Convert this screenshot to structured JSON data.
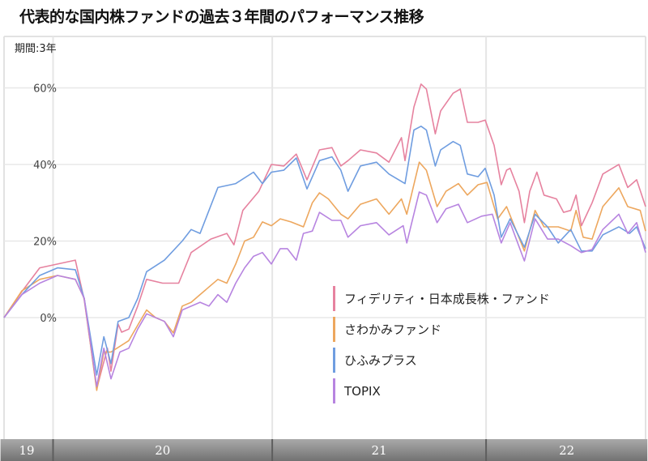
{
  "title": "代表的な国内株ファンドの過去３年間のパフォーマンス推移",
  "chart_data": {
    "type": "line",
    "title": "代表的な国内株ファンドの過去３年間のパフォーマンス推移",
    "period_label": "期間:3年",
    "xlabel": "",
    "ylabel": "",
    "x_unit": "months since start",
    "xlim": [
      0,
      36
    ],
    "ylim": [
      -33,
      73
    ],
    "yticks": [
      {
        "value": 0,
        "label": "0%"
      },
      {
        "value": 20,
        "label": "20%"
      },
      {
        "value": 40,
        "label": "40%"
      },
      {
        "value": 60,
        "label": "60%"
      }
    ],
    "years": [
      {
        "label": "19",
        "start": -0.2,
        "end": 2.75
      },
      {
        "label": "20",
        "start": 2.75,
        "end": 15.05
      },
      {
        "label": "21",
        "start": 15.05,
        "end": 27.05
      },
      {
        "label": "22",
        "start": 27.05,
        "end": 36.1
      }
    ],
    "legend_position": "center-right",
    "series": [
      {
        "name": "フィデリティ・日本成長株・ファンド",
        "color": "#e6829f",
        "points": [
          [
            0,
            0
          ],
          [
            1,
            6.8
          ],
          [
            2,
            13
          ],
          [
            3,
            14
          ],
          [
            4,
            15
          ],
          [
            4.5,
            4.6
          ],
          [
            5.2,
            -18.6
          ],
          [
            5.8,
            -8
          ],
          [
            6,
            -14
          ],
          [
            6.4,
            -1.7
          ],
          [
            6.6,
            -3.8
          ],
          [
            7,
            -3
          ],
          [
            7.5,
            3
          ],
          [
            8,
            10
          ],
          [
            8.9,
            9
          ],
          [
            9.8,
            9
          ],
          [
            10.5,
            17
          ],
          [
            11.6,
            20.5
          ],
          [
            12.5,
            22
          ],
          [
            12.9,
            19
          ],
          [
            13.4,
            28
          ],
          [
            14.3,
            33
          ],
          [
            15,
            40
          ],
          [
            15.7,
            39.6
          ],
          [
            16.4,
            42.7
          ],
          [
            17,
            36
          ],
          [
            17.7,
            43.8
          ],
          [
            18.4,
            44.4
          ],
          [
            18.9,
            39.6
          ],
          [
            19.3,
            41
          ],
          [
            20,
            43.8
          ],
          [
            20.9,
            43
          ],
          [
            21.6,
            40.6
          ],
          [
            22.3,
            47
          ],
          [
            22.5,
            41
          ],
          [
            23,
            55
          ],
          [
            23.4,
            61
          ],
          [
            23.7,
            59.7
          ],
          [
            24.2,
            48
          ],
          [
            24.5,
            54
          ],
          [
            25.2,
            58.6
          ],
          [
            25.6,
            59.7
          ],
          [
            26,
            51
          ],
          [
            26.6,
            51
          ],
          [
            27,
            51.6
          ],
          [
            27.5,
            45
          ],
          [
            27.9,
            34.7
          ],
          [
            28.2,
            38.5
          ],
          [
            28.4,
            39
          ],
          [
            28.9,
            33
          ],
          [
            29.2,
            24.8
          ],
          [
            29.5,
            33
          ],
          [
            29.9,
            38
          ],
          [
            30.3,
            32
          ],
          [
            31,
            31
          ],
          [
            31.4,
            27.5
          ],
          [
            31.8,
            28
          ],
          [
            32.1,
            32
          ],
          [
            32.4,
            24
          ],
          [
            33,
            30
          ],
          [
            33.6,
            37.5
          ],
          [
            34.5,
            40
          ],
          [
            35,
            34
          ],
          [
            35.5,
            36
          ],
          [
            36,
            29
          ]
        ]
      },
      {
        "name": "さわかみファンド",
        "color": "#eda75e",
        "points": [
          [
            0,
            0
          ],
          [
            1,
            7
          ],
          [
            2,
            10
          ],
          [
            3,
            11
          ],
          [
            4,
            10
          ],
          [
            4.5,
            5
          ],
          [
            5.2,
            -19
          ],
          [
            5.6,
            -9
          ],
          [
            6,
            -9
          ],
          [
            7,
            -6
          ],
          [
            7.5,
            -2
          ],
          [
            8,
            2
          ],
          [
            8.5,
            0
          ],
          [
            9,
            -1
          ],
          [
            9.5,
            -4
          ],
          [
            10,
            3
          ],
          [
            10.5,
            4
          ],
          [
            11,
            6
          ],
          [
            11.5,
            8
          ],
          [
            12,
            10
          ],
          [
            12.5,
            9
          ],
          [
            13,
            14
          ],
          [
            13.5,
            20
          ],
          [
            14,
            21
          ],
          [
            14.5,
            25
          ],
          [
            15,
            24
          ],
          [
            15.5,
            25.8
          ],
          [
            16.1,
            25
          ],
          [
            16.8,
            23.7
          ],
          [
            17.3,
            30
          ],
          [
            17.7,
            32.6
          ],
          [
            18.2,
            31
          ],
          [
            18.9,
            27
          ],
          [
            19.3,
            25.8
          ],
          [
            20,
            29.6
          ],
          [
            20.9,
            31
          ],
          [
            21.6,
            27
          ],
          [
            22.3,
            31
          ],
          [
            22.6,
            27
          ],
          [
            23.3,
            40.6
          ],
          [
            23.7,
            38.5
          ],
          [
            24.3,
            29
          ],
          [
            24.8,
            33
          ],
          [
            25.5,
            35
          ],
          [
            26,
            32
          ],
          [
            26.6,
            34.7
          ],
          [
            27.1,
            35.3
          ],
          [
            27.7,
            25.8
          ],
          [
            28.2,
            29
          ],
          [
            29.2,
            17.4
          ],
          [
            29.8,
            28
          ],
          [
            30.3,
            23.7
          ],
          [
            31.1,
            23.7
          ],
          [
            31.8,
            22.6
          ],
          [
            32.1,
            28
          ],
          [
            32.5,
            21
          ],
          [
            33,
            20.5
          ],
          [
            33.6,
            29
          ],
          [
            34.5,
            33.9
          ],
          [
            35,
            29
          ],
          [
            35.7,
            28
          ],
          [
            36,
            22.6
          ]
        ]
      },
      {
        "name": "ひふみプラス",
        "color": "#6f9de0",
        "points": [
          [
            0,
            0
          ],
          [
            1,
            6
          ],
          [
            2,
            11
          ],
          [
            3,
            13
          ],
          [
            4,
            12.5
          ],
          [
            4.5,
            5
          ],
          [
            5.2,
            -15
          ],
          [
            5.6,
            -5
          ],
          [
            6,
            -12
          ],
          [
            6.4,
            -1
          ],
          [
            7,
            0
          ],
          [
            7.5,
            5
          ],
          [
            8,
            12
          ],
          [
            9,
            15
          ],
          [
            10,
            20
          ],
          [
            10.5,
            23
          ],
          [
            11,
            22
          ],
          [
            11.5,
            28
          ],
          [
            12,
            34
          ],
          [
            13,
            35
          ],
          [
            14,
            38
          ],
          [
            14.5,
            35
          ],
          [
            15,
            38
          ],
          [
            15.7,
            38.5
          ],
          [
            16.4,
            41.7
          ],
          [
            17,
            33.6
          ],
          [
            17.7,
            41
          ],
          [
            18.4,
            42
          ],
          [
            18.9,
            38.5
          ],
          [
            19.3,
            33
          ],
          [
            20,
            39.6
          ],
          [
            20.9,
            40.6
          ],
          [
            21.6,
            37.5
          ],
          [
            22.5,
            35
          ],
          [
            23,
            49
          ],
          [
            23.4,
            50
          ],
          [
            23.7,
            49
          ],
          [
            24.2,
            39.6
          ],
          [
            24.5,
            43.8
          ],
          [
            25.2,
            46
          ],
          [
            25.6,
            45
          ],
          [
            26,
            37.5
          ],
          [
            26.6,
            36.8
          ],
          [
            27,
            39
          ],
          [
            27.5,
            32
          ],
          [
            27.9,
            21
          ],
          [
            28.4,
            25.8
          ],
          [
            29.2,
            18.4
          ],
          [
            29.8,
            27
          ],
          [
            30.5,
            23.7
          ],
          [
            31.1,
            19.5
          ],
          [
            31.8,
            23
          ],
          [
            32.4,
            17.4
          ],
          [
            33,
            17.4
          ],
          [
            33.6,
            21.6
          ],
          [
            34.5,
            23.7
          ],
          [
            35.1,
            22
          ],
          [
            35.5,
            23.7
          ],
          [
            36,
            18
          ]
        ]
      },
      {
        "name": "TOPIX",
        "color": "#b784e0",
        "points": [
          [
            0,
            0
          ],
          [
            1,
            6
          ],
          [
            2,
            9
          ],
          [
            3,
            11
          ],
          [
            4,
            10
          ],
          [
            4.5,
            5
          ],
          [
            5.2,
            -18
          ],
          [
            5.6,
            -8
          ],
          [
            6,
            -16
          ],
          [
            6.5,
            -9
          ],
          [
            7,
            -8
          ],
          [
            7.5,
            -3
          ],
          [
            8,
            1
          ],
          [
            9,
            -1
          ],
          [
            9.5,
            -5
          ],
          [
            10,
            2
          ],
          [
            11,
            4
          ],
          [
            11.5,
            3
          ],
          [
            12,
            6
          ],
          [
            12.5,
            4
          ],
          [
            13,
            9
          ],
          [
            13.5,
            13
          ],
          [
            14,
            16
          ],
          [
            14.5,
            17
          ],
          [
            15,
            14
          ],
          [
            15.5,
            18
          ],
          [
            15.9,
            18
          ],
          [
            16.4,
            15
          ],
          [
            16.8,
            22
          ],
          [
            17.3,
            22.6
          ],
          [
            17.7,
            27.5
          ],
          [
            18.4,
            25.4
          ],
          [
            18.9,
            25.4
          ],
          [
            19.3,
            21
          ],
          [
            20,
            24
          ],
          [
            20.9,
            24.8
          ],
          [
            21.6,
            21.6
          ],
          [
            22.4,
            24
          ],
          [
            22.6,
            19.5
          ],
          [
            23.3,
            32.8
          ],
          [
            23.7,
            32
          ],
          [
            24.3,
            24.8
          ],
          [
            24.8,
            28.4
          ],
          [
            25.5,
            29.6
          ],
          [
            26,
            24.8
          ],
          [
            26.8,
            26.5
          ],
          [
            27.4,
            27
          ],
          [
            27.9,
            19.5
          ],
          [
            28.4,
            24.8
          ],
          [
            29.2,
            14.8
          ],
          [
            29.8,
            25.8
          ],
          [
            30.5,
            20.5
          ],
          [
            31.1,
            20.5
          ],
          [
            31.8,
            18.8
          ],
          [
            32.4,
            17
          ],
          [
            33,
            17.8
          ],
          [
            33.6,
            23
          ],
          [
            34.5,
            27
          ],
          [
            35,
            22
          ],
          [
            35.5,
            24.8
          ],
          [
            36,
            17
          ]
        ]
      }
    ]
  }
}
